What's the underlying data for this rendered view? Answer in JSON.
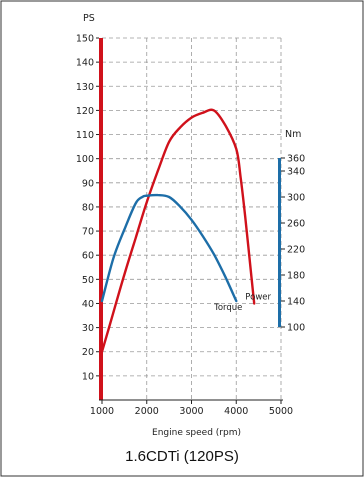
{
  "chart_data": {
    "type": "line",
    "title": "1.6CDTi (120PS)",
    "xlabel": "Engine speed (rpm)",
    "ylabel_left": "PS",
    "ylabel_right": "Nm",
    "xlim": [
      1000,
      5000
    ],
    "x_ticks": [
      1000,
      2000,
      3000,
      4000,
      5000
    ],
    "ylim_left": [
      0,
      150
    ],
    "y_ticks_left": [
      10,
      20,
      30,
      40,
      50,
      60,
      70,
      80,
      90,
      100,
      110,
      120,
      130,
      140,
      150
    ],
    "ylim_right": [
      100,
      360
    ],
    "y_ticks_right": [
      100,
      140,
      180,
      220,
      260,
      300,
      340,
      360
    ],
    "grid": true,
    "series": [
      {
        "name": "Power",
        "axis": "left",
        "color": "#d0111b",
        "x": [
          1000,
          1250,
          1500,
          1750,
          2000,
          2250,
          2500,
          2750,
          3000,
          3250,
          3500,
          3750,
          4000,
          4100,
          4200,
          4300,
          4400
        ],
        "y": [
          20,
          36,
          52,
          67,
          82,
          95,
          107,
          113,
          117,
          119,
          120,
          114,
          104,
          92,
          76,
          58,
          40
        ]
      },
      {
        "name": "Torque",
        "axis": "right",
        "color": "#1d6ea8",
        "x": [
          1000,
          1250,
          1500,
          1750,
          1900,
          2000,
          2250,
          2500,
          2750,
          3000,
          3250,
          3500,
          3750,
          4000
        ],
        "y": [
          140,
          205,
          250,
          290,
          300,
          302,
          303,
          300,
          285,
          265,
          240,
          212,
          178,
          140
        ]
      }
    ]
  }
}
